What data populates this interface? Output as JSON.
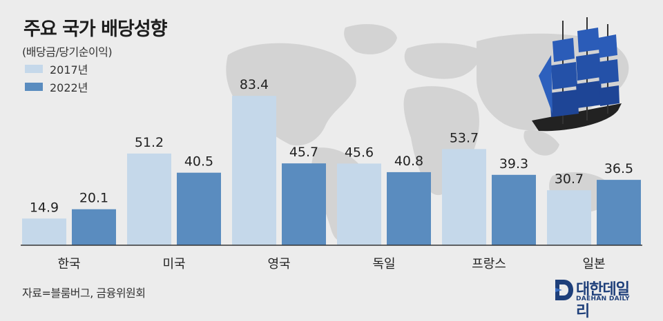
{
  "title": "주요 국가 배당성향",
  "subtitle": "(배당금/당기순이익)",
  "source": "자료=블룸버그, 금융위원회",
  "logo": {
    "name": "대한데일리",
    "sub": "DAEHAN DAILY"
  },
  "colors": {
    "series_2017": "#c5d8ea",
    "series_2022": "#5a8cbf",
    "map": "#cfcfcf",
    "axis": "#333333"
  },
  "chart_data": {
    "type": "bar",
    "title": "주요 국가 배당성향",
    "subtitle": "(배당금/당기순이익)",
    "categories": [
      "한국",
      "미국",
      "영국",
      "독일",
      "프랑스",
      "일본"
    ],
    "series": [
      {
        "name": "2017년",
        "values": [
          14.9,
          51.2,
          83.4,
          45.6,
          53.7,
          30.7
        ]
      },
      {
        "name": "2022년",
        "values": [
          20.1,
          40.5,
          45.7,
          40.8,
          39.3,
          36.5
        ]
      }
    ],
    "ylim": [
      0,
      100
    ],
    "legend": "top-left",
    "grid": false,
    "data_labels": true
  }
}
